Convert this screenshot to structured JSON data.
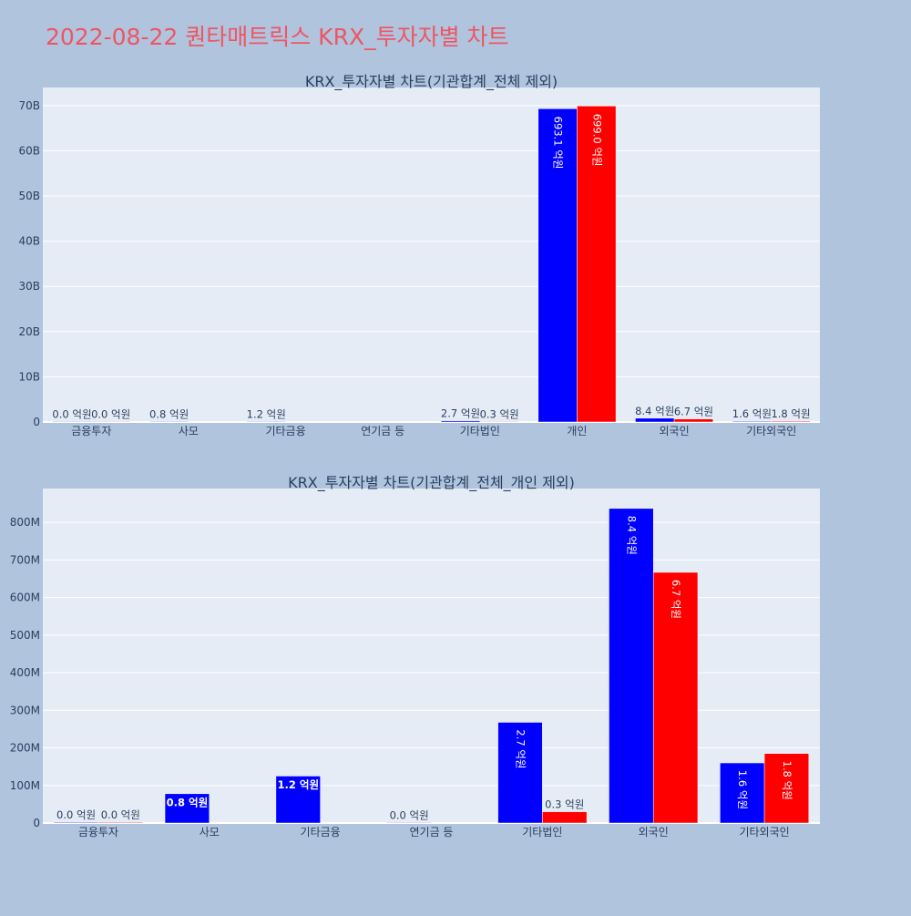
{
  "page": {
    "title": "2022-08-22 퀀타매트릭스 KRX_투자자별 차트",
    "title_color": "#ef5563",
    "background": "#b0c4de",
    "plot_background": "#e5ecf6"
  },
  "chart_data": [
    {
      "type": "bar",
      "title": "KRX_투자자별 차트(기관합계_전체 제외)",
      "categories": [
        "금융투자",
        "사모",
        "기타금융",
        "연기금 등",
        "기타법인",
        "개인",
        "외국인",
        "기타외국인"
      ],
      "ylim": [
        0,
        74000000000
      ],
      "yticks": [
        {
          "value": 0,
          "label": "0"
        },
        {
          "value": 10000000000,
          "label": "10B"
        },
        {
          "value": 20000000000,
          "label": "20B"
        },
        {
          "value": 30000000000,
          "label": "30B"
        },
        {
          "value": 40000000000,
          "label": "40B"
        },
        {
          "value": 50000000000,
          "label": "50B"
        },
        {
          "value": 60000000000,
          "label": "60B"
        },
        {
          "value": 70000000000,
          "label": "70B"
        }
      ],
      "grid": true,
      "series": [
        {
          "color": "#0000ff",
          "values": [
            2000000,
            80000000,
            120000000,
            null,
            270000000,
            69310000000,
            840000000,
            160000000
          ],
          "labels": [
            "0.0 억원",
            "0.8 억원",
            "1.2 억원",
            null,
            "2.7 억원",
            "693.1 억원",
            "8.4 억원",
            "1.6 억원"
          ]
        },
        {
          "color": "#ff0000",
          "values": [
            2000000,
            null,
            null,
            null,
            30000000,
            69900000000,
            670000000,
            180000000
          ],
          "labels": [
            "0.0 억원",
            null,
            null,
            null,
            "0.3 억원",
            "699.0 억원",
            "6.7 억원",
            "1.8 억원"
          ]
        }
      ]
    },
    {
      "type": "bar",
      "title": "KRX_투자자별 차트(기관합계_전체_개인 제외)",
      "categories": [
        "금융투자",
        "사모",
        "기타금융",
        "연기금 등",
        "기타법인",
        "외국인",
        "기타외국인"
      ],
      "ylim": [
        0,
        890000000
      ],
      "yticks": [
        {
          "value": 0,
          "label": "0"
        },
        {
          "value": 100000000,
          "label": "100M"
        },
        {
          "value": 200000000,
          "label": "200M"
        },
        {
          "value": 300000000,
          "label": "300M"
        },
        {
          "value": 400000000,
          "label": "400M"
        },
        {
          "value": 500000000,
          "label": "500M"
        },
        {
          "value": 600000000,
          "label": "600M"
        },
        {
          "value": 700000000,
          "label": "700M"
        },
        {
          "value": 800000000,
          "label": "800M"
        }
      ],
      "grid": true,
      "series": [
        {
          "color": "#0000ff",
          "values": [
            2000000,
            78000000,
            125000000,
            1000000,
            268000000,
            837000000,
            160000000
          ],
          "labels": [
            "0.0 억원",
            "0.8 억원",
            "1.2 억원",
            "0.0 억원",
            "2.7 억원",
            "8.4 억원",
            "1.6 억원"
          ]
        },
        {
          "color": "#ff0000",
          "values": [
            2000000,
            null,
            null,
            null,
            30000000,
            667000000,
            185000000
          ],
          "labels": [
            "0.0 억원",
            null,
            null,
            null,
            "0.3 억원",
            "6.7 억원",
            "1.8 억원"
          ]
        }
      ]
    }
  ]
}
